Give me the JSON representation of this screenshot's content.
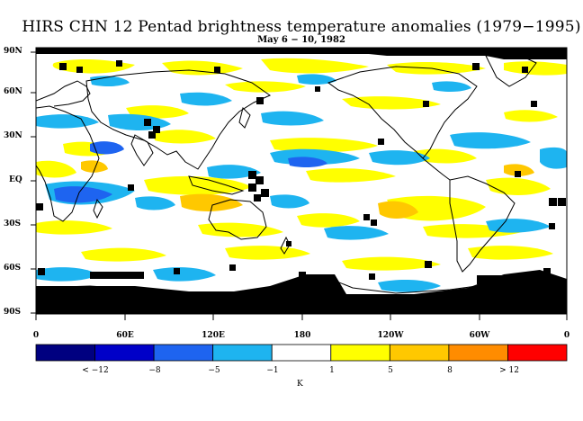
{
  "title": "HIRS CHN 12 Pentad brightness temperature anomalies (1979−1995)",
  "subtitle": "May 6 − 10, 1982",
  "lat_labels": [
    "90N",
    "60N",
    "30N",
    "EQ",
    "30S",
    "60S",
    "90S"
  ],
  "lon_labels": [
    "0",
    "60E",
    "120E",
    "180",
    "120W",
    "60W",
    "0"
  ],
  "colorbar": {
    "colors": [
      "#000080",
      "#0000c8",
      "#1e64f0",
      "#1eb4f0",
      "#ffffff",
      "#ffff00",
      "#ffc800",
      "#ff8c00",
      "#ff0000"
    ],
    "labels": [
      "< −12",
      "−8",
      "−5",
      "−1",
      "1",
      "5",
      "8",
      "> 12"
    ],
    "unit": "K"
  }
}
